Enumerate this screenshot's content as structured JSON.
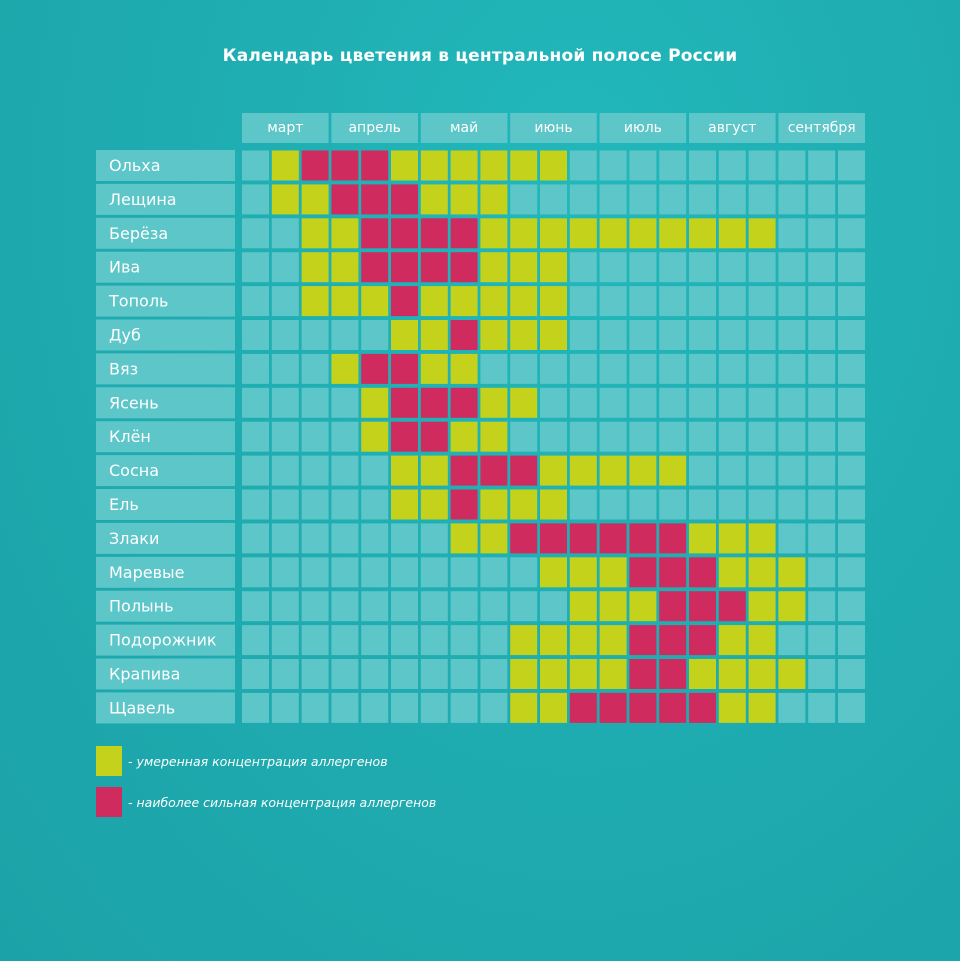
{
  "chart_data": {
    "type": "heatmap",
    "title": "Календарь цветения в центральной полосе России",
    "months": [
      "март",
      "апрель",
      "май",
      "июнь",
      "июль",
      "август",
      "сентября"
    ],
    "periods_per_month": 3,
    "levels": {
      "0": "none",
      "1": "умеренная концентрация аллергенов",
      "2": "наиболее сильная концентрация аллергенов"
    },
    "rows": [
      {
        "name": "Ольха",
        "values": [
          0,
          1,
          2,
          2,
          2,
          1,
          1,
          1,
          1,
          1,
          1,
          0,
          0,
          0,
          0,
          0,
          0,
          0,
          0,
          0,
          0
        ]
      },
      {
        "name": "Лещина",
        "values": [
          0,
          1,
          1,
          2,
          2,
          2,
          1,
          1,
          1,
          0,
          0,
          0,
          0,
          0,
          0,
          0,
          0,
          0,
          0,
          0,
          0
        ]
      },
      {
        "name": "Берёза",
        "values": [
          0,
          0,
          1,
          1,
          2,
          2,
          2,
          2,
          1,
          1,
          1,
          1,
          1,
          1,
          1,
          1,
          1,
          1,
          0,
          0,
          0
        ]
      },
      {
        "name": "Ива",
        "values": [
          0,
          0,
          1,
          1,
          2,
          2,
          2,
          2,
          1,
          1,
          1,
          0,
          0,
          0,
          0,
          0,
          0,
          0,
          0,
          0,
          0
        ]
      },
      {
        "name": "Тополь",
        "values": [
          0,
          0,
          1,
          1,
          1,
          2,
          1,
          1,
          1,
          1,
          1,
          0,
          0,
          0,
          0,
          0,
          0,
          0,
          0,
          0,
          0
        ]
      },
      {
        "name": "Дуб",
        "values": [
          0,
          0,
          0,
          0,
          0,
          1,
          1,
          2,
          1,
          1,
          1,
          0,
          0,
          0,
          0,
          0,
          0,
          0,
          0,
          0,
          0
        ]
      },
      {
        "name": "Вяз",
        "values": [
          0,
          0,
          0,
          1,
          2,
          2,
          1,
          1,
          0,
          0,
          0,
          0,
          0,
          0,
          0,
          0,
          0,
          0,
          0,
          0,
          0
        ]
      },
      {
        "name": "Ясень",
        "values": [
          0,
          0,
          0,
          0,
          1,
          2,
          2,
          2,
          1,
          1,
          0,
          0,
          0,
          0,
          0,
          0,
          0,
          0,
          0,
          0,
          0
        ]
      },
      {
        "name": "Клён",
        "values": [
          0,
          0,
          0,
          0,
          1,
          2,
          2,
          1,
          1,
          0,
          0,
          0,
          0,
          0,
          0,
          0,
          0,
          0,
          0,
          0,
          0
        ]
      },
      {
        "name": "Сосна",
        "values": [
          0,
          0,
          0,
          0,
          0,
          1,
          1,
          2,
          2,
          2,
          1,
          1,
          1,
          1,
          1,
          0,
          0,
          0,
          0,
          0,
          0
        ]
      },
      {
        "name": "Ель",
        "values": [
          0,
          0,
          0,
          0,
          0,
          1,
          1,
          2,
          1,
          1,
          1,
          0,
          0,
          0,
          0,
          0,
          0,
          0,
          0,
          0,
          0
        ]
      },
      {
        "name": "Злаки",
        "values": [
          0,
          0,
          0,
          0,
          0,
          0,
          0,
          1,
          1,
          2,
          2,
          2,
          2,
          2,
          2,
          1,
          1,
          1,
          0,
          0,
          0
        ]
      },
      {
        "name": "Маревые",
        "values": [
          0,
          0,
          0,
          0,
          0,
          0,
          0,
          0,
          0,
          0,
          1,
          1,
          1,
          2,
          2,
          2,
          1,
          1,
          1,
          0,
          0
        ]
      },
      {
        "name": "Полынь",
        "values": [
          0,
          0,
          0,
          0,
          0,
          0,
          0,
          0,
          0,
          0,
          0,
          1,
          1,
          1,
          2,
          2,
          2,
          1,
          1,
          0,
          0
        ]
      },
      {
        "name": "Подорожник",
        "values": [
          0,
          0,
          0,
          0,
          0,
          0,
          0,
          0,
          0,
          1,
          1,
          1,
          1,
          2,
          2,
          2,
          1,
          1,
          0,
          0,
          0
        ]
      },
      {
        "name": "Крапива",
        "values": [
          0,
          0,
          0,
          0,
          0,
          0,
          0,
          0,
          0,
          1,
          1,
          1,
          1,
          2,
          2,
          1,
          1,
          1,
          1,
          0,
          0
        ]
      },
      {
        "name": "Щавель",
        "values": [
          0,
          0,
          0,
          0,
          0,
          0,
          0,
          0,
          0,
          1,
          1,
          2,
          2,
          2,
          2,
          2,
          1,
          1,
          0,
          0,
          0
        ]
      }
    ]
  },
  "legend": [
    {
      "level": 1,
      "label": "- умеренная концентрация аллергенов"
    },
    {
      "level": 2,
      "label": "- наиболее сильная концентрация аллергенов"
    }
  ],
  "colors": {
    "background": "#1fadb1",
    "cell_empty": "#5cc6c9",
    "label_bg": "#5cc6c9",
    "moderate": "#c4d21c",
    "strong": "#cf2b5e",
    "text": "#ffffff"
  }
}
